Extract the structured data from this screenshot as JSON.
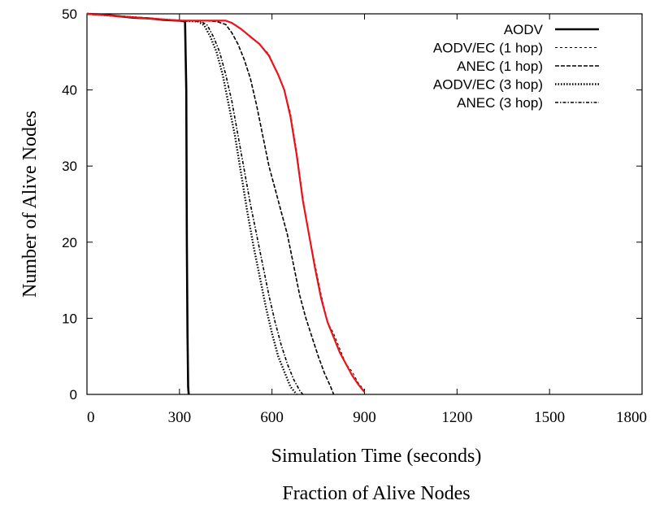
{
  "chart_data": {
    "type": "line",
    "title": "",
    "xlabel": "Simulation Time (seconds)",
    "ylabel": "Number of Alive Nodes",
    "caption": "Fraction of Alive Nodes",
    "xlim": [
      0,
      1800
    ],
    "ylim": [
      0,
      50
    ],
    "xticks": [
      0,
      300,
      600,
      900,
      1200,
      1500,
      1800
    ],
    "yticks": [
      0,
      10,
      20,
      30,
      40,
      50
    ],
    "grid": false,
    "legend_position": "top-right",
    "series": [
      {
        "name": "AODV",
        "style": "solid",
        "color": "#000000",
        "x": [
          0,
          50,
          100,
          150,
          200,
          250,
          300,
          318,
          322,
          324,
          326,
          328,
          330
        ],
        "y": [
          50,
          49.9,
          49.7,
          49.5,
          49.4,
          49.2,
          49.1,
          49.0,
          40,
          20,
          8,
          1,
          0
        ]
      },
      {
        "name": "AODV/EC (1 hop)",
        "style": "thin-dash",
        "color": "#000000",
        "x": [
          0,
          300,
          400,
          450,
          470,
          500,
          530,
          560,
          590,
          620,
          640,
          660,
          680,
          700,
          720,
          740,
          760,
          780,
          800,
          820,
          840,
          860,
          880,
          900
        ],
        "y": [
          50,
          49.1,
          49.1,
          49.1,
          48.8,
          48.0,
          47.0,
          46.0,
          44.7,
          42.0,
          40.0,
          37.0,
          32.0,
          26.0,
          21.0,
          17.0,
          13.0,
          9.5,
          8.0,
          6.0,
          4.0,
          3.0,
          1.5,
          0.5
        ]
      },
      {
        "name": "ANEC (1 hop)",
        "style": "dash",
        "color": "#000000",
        "x": [
          0,
          300,
          380,
          420,
          450,
          470,
          490,
          510,
          530,
          550,
          570,
          590,
          610,
          630,
          650,
          670,
          690,
          710,
          730,
          750,
          770,
          790,
          800
        ],
        "y": [
          50,
          49.1,
          49.1,
          49.0,
          48.6,
          47.5,
          46.0,
          44.0,
          41.5,
          38.0,
          34.0,
          30.0,
          27.0,
          24.0,
          21.0,
          17.0,
          13.0,
          10.0,
          7.5,
          5.0,
          2.8,
          1.0,
          0
        ]
      },
      {
        "name": "AODV/EC (3 hop)",
        "style": "dot",
        "color": "#000000",
        "x": [
          0,
          300,
          360,
          380,
          400,
          420,
          440,
          460,
          480,
          500,
          520,
          540,
          560,
          580,
          600,
          620,
          640,
          660,
          680
        ],
        "y": [
          50,
          49.1,
          49.0,
          48.5,
          47.0,
          45.0,
          42.0,
          38.0,
          34.0,
          29.0,
          24.0,
          19.5,
          15.5,
          11.5,
          8.0,
          5.0,
          3.0,
          1.0,
          0
        ]
      },
      {
        "name": "ANEC (3 hop)",
        "style": "dash-dot",
        "color": "#000000",
        "x": [
          0,
          300,
          370,
          390,
          410,
          430,
          450,
          470,
          490,
          510,
          530,
          550,
          570,
          590,
          610,
          630,
          650,
          670,
          690,
          700
        ],
        "y": [
          50,
          49.1,
          49.0,
          48.5,
          47.0,
          45.0,
          42.0,
          38.5,
          34.0,
          29.5,
          25.0,
          21.0,
          17.0,
          13.0,
          9.5,
          6.5,
          4.0,
          2.0,
          0.5,
          0
        ]
      },
      {
        "name": "",
        "style": "solid",
        "color": "#e8141a",
        "x": [
          0,
          300,
          400,
          450,
          470,
          500,
          530,
          560,
          590,
          620,
          640,
          660,
          680,
          700,
          720,
          740,
          760,
          780,
          800,
          820,
          840,
          860,
          880,
          900
        ],
        "y": [
          50,
          49.1,
          49.1,
          49.1,
          48.8,
          48.0,
          47.0,
          46.0,
          44.5,
          42.0,
          40.0,
          36.5,
          31.5,
          25.5,
          21.0,
          16.5,
          12.5,
          9.5,
          7.5,
          5.5,
          4.0,
          2.5,
          1.3,
          0.3
        ]
      }
    ]
  }
}
